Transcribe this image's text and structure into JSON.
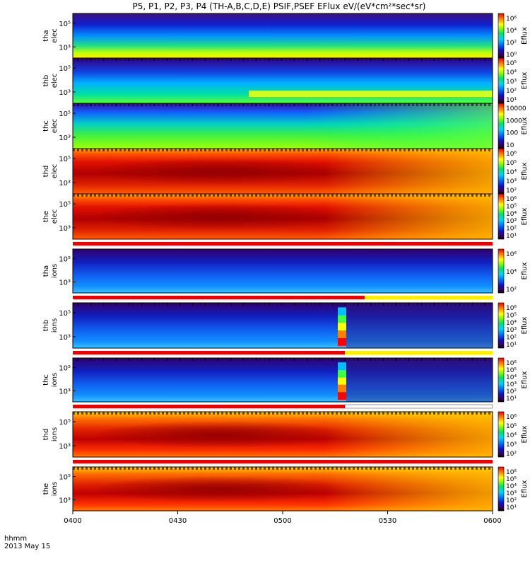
{
  "chart_data": {
    "type": "heatmap",
    "title": "P5, P1, P2, P3, P4  (TH-A,B,C,D,E) PSIF,PSEF EFlux eV/(eV*cm²*sec*sr)",
    "x_tick_labels": [
      "0400",
      "0430",
      "0500",
      "0530",
      "0600"
    ],
    "x_axis_title": "hhmm",
    "date_label": "2013 May 15",
    "colorbar_label": "Eflux",
    "panels": [
      {
        "probe": "tha",
        "species": "elec",
        "y_ticks": [
          "10⁵",
          "10³"
        ],
        "cbar_ticks": [
          "10⁶",
          "10⁴",
          "10²",
          "10⁰"
        ],
        "has_bar": false
      },
      {
        "probe": "thb",
        "species": "elec",
        "y_ticks": [
          "10⁵",
          "10³"
        ],
        "cbar_ticks": [
          "10⁵",
          "10⁴",
          "10³",
          "10²",
          "10¹"
        ],
        "has_bar": false
      },
      {
        "probe": "thc",
        "species": "elec",
        "y_ticks": [
          "10⁵",
          "10³"
        ],
        "cbar_ticks": [
          "10000",
          "1000",
          "100",
          "10"
        ],
        "has_bar": false
      },
      {
        "probe": "thd",
        "species": "elec",
        "y_ticks": [
          "10⁵",
          "10³"
        ],
        "cbar_ticks": [
          "10⁶",
          "10⁵",
          "10⁴",
          "10³",
          "10²"
        ],
        "has_bar": false
      },
      {
        "probe": "the",
        "species": "elec",
        "y_ticks": [
          "10⁵",
          "10³"
        ],
        "cbar_ticks": [
          "10⁶",
          "10⁵",
          "10⁴",
          "10³",
          "10²",
          "10¹"
        ],
        "has_bar": true
      },
      {
        "probe": "tha",
        "species": "ions",
        "y_ticks": [
          "10⁵",
          "10³"
        ],
        "cbar_ticks": [
          "10⁶",
          "10⁴",
          "10²"
        ],
        "has_bar": true
      },
      {
        "probe": "thb",
        "species": "ions",
        "y_ticks": [
          "10⁵",
          "10³"
        ],
        "cbar_ticks": [
          "10⁶",
          "10⁵",
          "10⁴",
          "10³",
          "10²",
          "10¹"
        ],
        "has_bar": true
      },
      {
        "probe": "thc",
        "species": "ions",
        "y_ticks": [
          "10⁵",
          "10³"
        ],
        "cbar_ticks": [
          "10⁶",
          "10⁵",
          "10⁴",
          "10³",
          "10²",
          "10¹"
        ],
        "has_bar": true
      },
      {
        "probe": "thd",
        "species": "ions",
        "y_ticks": [
          "10⁵",
          "10³"
        ],
        "cbar_ticks": [
          "10⁶",
          "10⁵",
          "10⁴",
          "10³",
          "10²"
        ],
        "has_bar": true
      },
      {
        "probe": "the",
        "species": "ions",
        "y_ticks": [
          "10⁵",
          "10³"
        ],
        "cbar_ticks": [
          "10⁶",
          "10⁵",
          "10⁴",
          "10³",
          "10²",
          "10¹"
        ],
        "has_bar": false
      }
    ]
  }
}
